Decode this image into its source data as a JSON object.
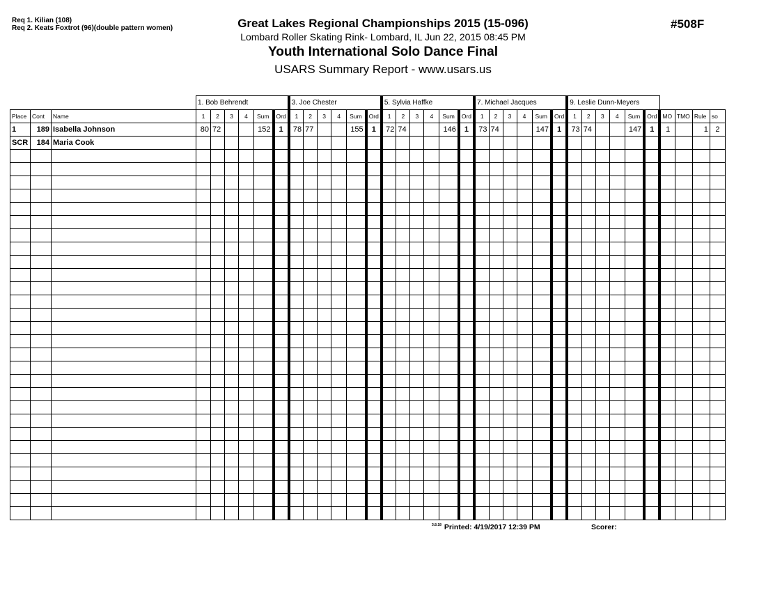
{
  "header": {
    "requirements": [
      "Req 1.  Kilian (108)",
      "Req 2.  Keats Foxtrot (96)(double pattern women)"
    ],
    "title": "Great Lakes Regional Championships 2015 (15-096)",
    "location": "Lombard Roller Skating Rink- Lombard, IL  Jun 22, 2015  08:45 PM",
    "event_name": "Youth International Solo Dance Final",
    "report": "USARS Summary Report - www.usars.us",
    "event_number": "#508F"
  },
  "table": {
    "judges": [
      "1.  Bob Behrendt",
      "3.  Joe  Chester",
      "5.  Sylvia Haffke",
      "7.  Michael  Jacques",
      "9.  Leslie Dunn-Meyers"
    ],
    "left_headers": [
      "Place",
      "Cont",
      "Name"
    ],
    "judge_subheaders": [
      "1",
      "2",
      "3",
      "4",
      "Sum",
      "Ord"
    ],
    "right_headers": [
      "MO",
      "TMO",
      "Rule",
      "so"
    ],
    "rows": [
      {
        "place": "1",
        "cont": "189",
        "name": "Isabella Johnson",
        "scores": [
          [
            "80",
            "72",
            "",
            "",
            "152",
            "1"
          ],
          [
            "78",
            "77",
            "",
            "",
            "155",
            "1"
          ],
          [
            "72",
            "74",
            "",
            "",
            "146",
            "1"
          ],
          [
            "73",
            "74",
            "",
            "",
            "147",
            "1"
          ],
          [
            "73",
            "74",
            "",
            "",
            "147",
            "1"
          ]
        ],
        "mo": "1",
        "tmo": "",
        "rule": "1",
        "so": "2"
      },
      {
        "place": "SCR",
        "cont": "184",
        "name": "Maria Cook",
        "scores": [
          [
            "",
            "",
            "",
            "",
            "",
            ""
          ],
          [
            "",
            "",
            "",
            "",
            "",
            ""
          ],
          [
            "",
            "",
            "",
            "",
            "",
            ""
          ],
          [
            "",
            "",
            "",
            "",
            "",
            ""
          ],
          [
            "",
            "",
            "",
            "",
            "",
            ""
          ]
        ],
        "mo": "",
        "tmo": "",
        "rule": "",
        "so": ""
      }
    ],
    "empty_rows": 28
  },
  "footer": {
    "version": "3.8.18",
    "printed": "Printed:  4/19/2017 12:39 PM",
    "scorer": "Scorer:"
  }
}
